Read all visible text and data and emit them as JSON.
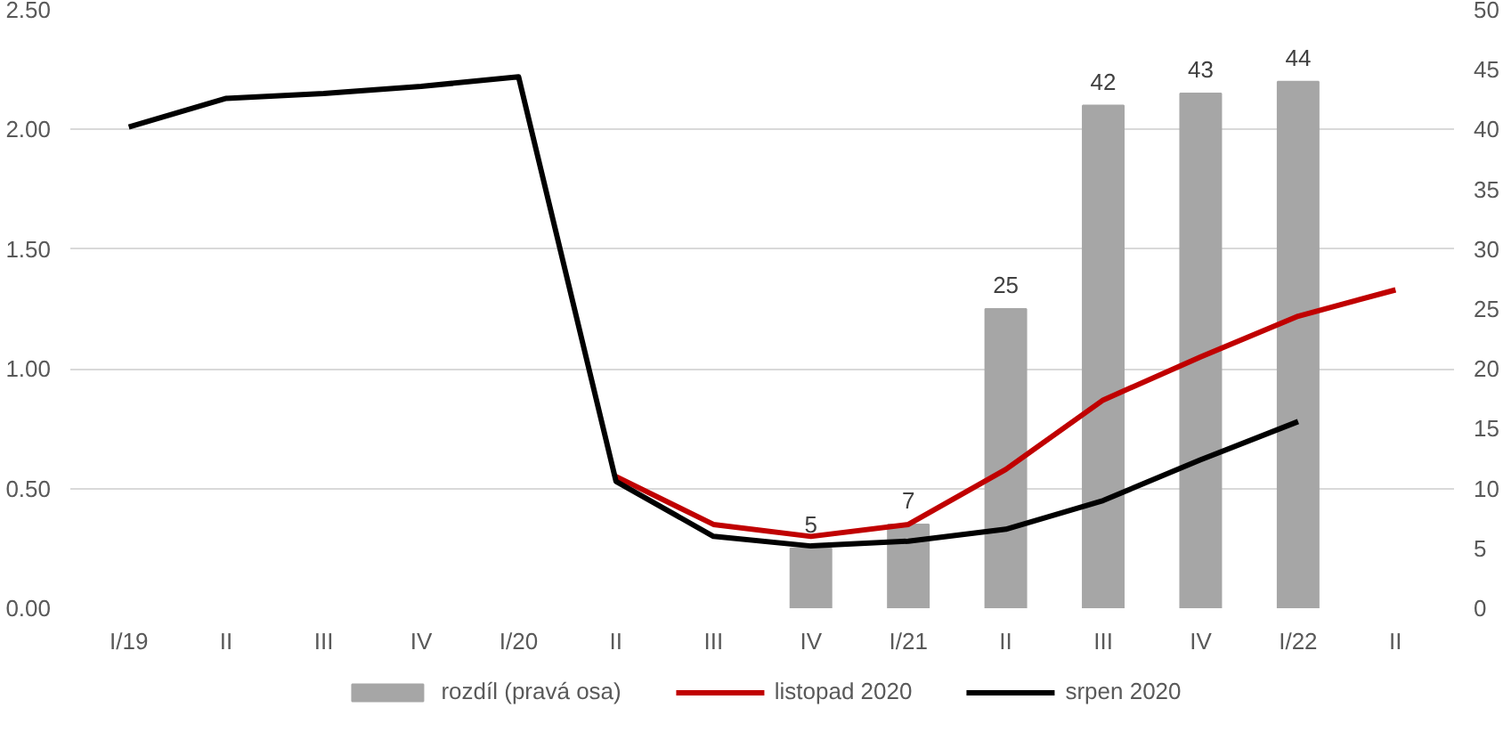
{
  "chart_data": {
    "type": "line",
    "categories": [
      "I/19",
      "II",
      "III",
      "IV",
      "I/20",
      "II",
      "III",
      "IV",
      "I/21",
      "II",
      "III",
      "IV",
      "I/22",
      "II"
    ],
    "series": [
      {
        "name": "rozdíl (pravá osa)",
        "type": "bar",
        "axis": "y2",
        "color": "#a6a6a6",
        "data_labels": true,
        "values": [
          null,
          null,
          null,
          null,
          null,
          null,
          null,
          5,
          7,
          25,
          42,
          43,
          44,
          null
        ]
      },
      {
        "name": "listopad 2020",
        "color": "#c00000",
        "values": [
          null,
          null,
          null,
          null,
          null,
          0.55,
          0.35,
          0.3,
          0.35,
          0.58,
          0.87,
          1.05,
          1.22,
          1.33
        ]
      },
      {
        "name": "srpen 2020",
        "color": "#000000",
        "values": [
          2.01,
          2.13,
          2.15,
          2.18,
          2.22,
          0.53,
          0.3,
          0.26,
          0.28,
          0.33,
          0.45,
          0.62,
          0.78,
          null
        ]
      }
    ],
    "ylim": [
      0,
      2.5
    ],
    "yticks": [
      {
        "value": 0,
        "label": "0.00"
      },
      {
        "value": 0.5,
        "label": "0.50"
      },
      {
        "value": 1,
        "label": "1.00"
      },
      {
        "value": 1.5,
        "label": "1.50"
      },
      {
        "value": 2,
        "label": "2.00"
      },
      {
        "value": 2.5,
        "label": "2.50"
      }
    ],
    "y2lim": [
      0,
      50
    ],
    "y2ticks": [
      0,
      5,
      10,
      15,
      20,
      25,
      30,
      35,
      40,
      45,
      50
    ],
    "grid": "y",
    "legend": "bottom",
    "line_style": "solid",
    "marker": "none"
  }
}
